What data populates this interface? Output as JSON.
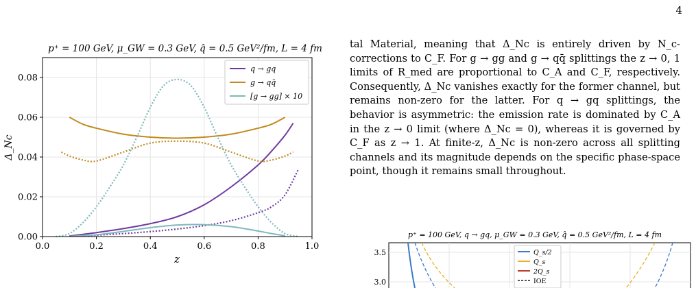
{
  "page_number": "4",
  "body_text": "tal Material, meaning that Δ_Nc is entirely driven by N_c-corrections to C_F. For g → gg and g → qq̄ splittings the z → 0, 1 limits of R_med are proportional to C_A and C_F, respectively. Consequently, Δ_Nc vanishes exactly for the former channel, but remains non-zero for the latter. For q → gq splittings, the behavior is asymmetric: the emission rate is dominated by C_A in the z → 0 limit (where Δ_Nc = 0), whereas it is governed by C_F as z → 1. At finite-z, Δ_Nc is non-zero across all splitting channels and its magnitude depends on the specific phase-space point, though it remains small throughout.",
  "chart_data": [
    {
      "type": "line",
      "title": "p⁺ = 100 GeV, μ_GW = 0.3 GeV, q̂ = 0.5 GeV²/fm, L = 4 fm",
      "xlabel": "z",
      "ylabel": "Δ_Nc",
      "xlim": [
        0.0,
        1.0
      ],
      "ylim": [
        0.0,
        0.09
      ],
      "xticks": [
        "0.0",
        "0.2",
        "0.4",
        "0.6",
        "0.8",
        "1.0"
      ],
      "yticks": [
        "0.00",
        "0.02",
        "0.04",
        "0.06",
        "0.08"
      ],
      "grid": true,
      "legend_position": "top-right",
      "legend": [
        "q → gq",
        "g → qq̄",
        "[g → gg] × 10"
      ],
      "series": [
        {
          "name": "q → gq",
          "color": "#6f3aa0",
          "style": "solid",
          "x": [
            0.1,
            0.2,
            0.3,
            0.4,
            0.5,
            0.6,
            0.7,
            0.8,
            0.85,
            0.9,
            0.93
          ],
          "y": [
            0.0003,
            0.002,
            0.004,
            0.0065,
            0.01,
            0.016,
            0.025,
            0.036,
            0.043,
            0.051,
            0.057
          ]
        },
        {
          "name": "q → gq",
          "color": "#6f3aa0",
          "style": "dotted",
          "x": [
            0.1,
            0.2,
            0.3,
            0.4,
            0.5,
            0.6,
            0.7,
            0.8,
            0.85,
            0.9,
            0.95
          ],
          "y": [
            0.0001,
            0.0007,
            0.0015,
            0.0025,
            0.0038,
            0.0055,
            0.008,
            0.012,
            0.015,
            0.021,
            0.034
          ]
        },
        {
          "name": "g → qq̄",
          "color": "#c08a1e",
          "style": "solid",
          "x": [
            0.1,
            0.15,
            0.2,
            0.3,
            0.4,
            0.5,
            0.6,
            0.7,
            0.8,
            0.85,
            0.9
          ],
          "y": [
            0.06,
            0.0565,
            0.0545,
            0.0515,
            0.05,
            0.0495,
            0.05,
            0.0515,
            0.0545,
            0.0565,
            0.06
          ]
        },
        {
          "name": "g → qq̄",
          "color": "#c08a1e",
          "style": "dotted",
          "x": [
            0.07,
            0.1,
            0.15,
            0.2,
            0.3,
            0.4,
            0.5,
            0.6,
            0.7,
            0.8,
            0.85,
            0.9,
            0.93
          ],
          "y": [
            0.0425,
            0.0405,
            0.0385,
            0.038,
            0.0425,
            0.047,
            0.048,
            0.047,
            0.0425,
            0.038,
            0.0385,
            0.0405,
            0.0425
          ]
        },
        {
          "name": "[g → gg] × 10",
          "color": "#7fb8bd",
          "style": "solid",
          "x": [
            0.1,
            0.2,
            0.3,
            0.4,
            0.5,
            0.6,
            0.7,
            0.8,
            0.85,
            0.9
          ],
          "y": [
            0.0001,
            0.0009,
            0.0026,
            0.0045,
            0.0058,
            0.006,
            0.005,
            0.0028,
            0.0015,
            0.0004
          ]
        },
        {
          "name": "[g → gg] × 10",
          "color": "#7fb8bd",
          "style": "dotted",
          "x": [
            0.05,
            0.1,
            0.15,
            0.2,
            0.25,
            0.3,
            0.35,
            0.4,
            0.45,
            0.5,
            0.55,
            0.6,
            0.65,
            0.7,
            0.75,
            0.8,
            0.85,
            0.9,
            0.95
          ],
          "y": [
            0.0,
            0.0015,
            0.007,
            0.015,
            0.025,
            0.036,
            0.05,
            0.065,
            0.076,
            0.079,
            0.076,
            0.065,
            0.05,
            0.036,
            0.025,
            0.015,
            0.007,
            0.0015,
            0.0
          ]
        }
      ]
    },
    {
      "type": "line",
      "title": "p⁺ = 100 GeV, q → gq, μ_GW = 0.3 GeV, q̂ = 0.5 GeV²/fm, L = 4 fm",
      "ylim": [
        2.8,
        3.6
      ],
      "yticks": [
        "3.5",
        "3.0"
      ],
      "legend": [
        "Q_s/2",
        "Q_s",
        "2Q_s",
        "IOE"
      ],
      "legend_colors": [
        "#3a7bc8",
        "#e8b020",
        "#c0392b",
        "#555555"
      ],
      "legend_position": "top"
    }
  ]
}
